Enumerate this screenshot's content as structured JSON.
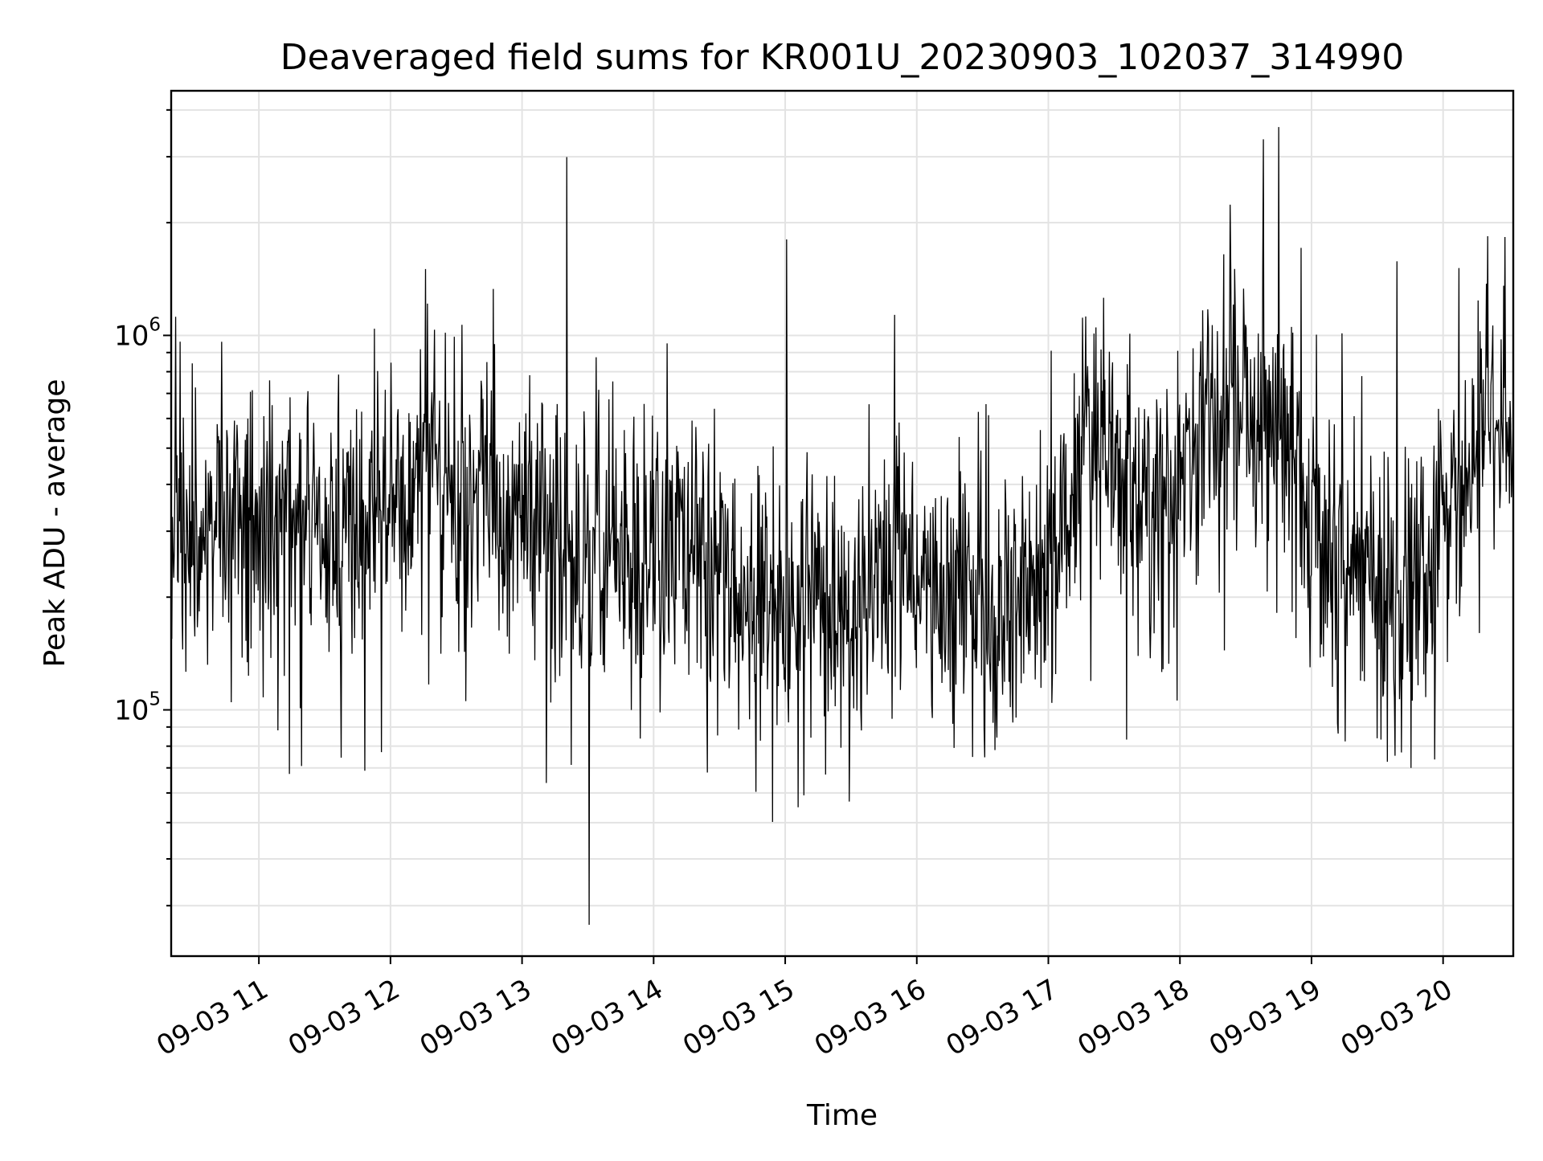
{
  "chart_data": {
    "type": "line",
    "title": "Deaveraged field sums for KR001U_20230903_102037_314990",
    "xlabel": "Time",
    "ylabel": "Peak ADU - average",
    "y_scale": "log",
    "ylim": [
      22000,
      4500000
    ],
    "xlim": [
      "09-03 10:20",
      "09-03 20:32"
    ],
    "x_tick_labels": [
      "09-03 11",
      "09-03 12",
      "09-03 13",
      "09-03 14",
      "09-03 15",
      "09-03 16",
      "09-03 17",
      "09-03 18",
      "09-03 19",
      "09-03 20"
    ],
    "y_tick_labels": [
      {
        "base": "10",
        "exp": "5",
        "value": 100000
      },
      {
        "base": "10",
        "exp": "6",
        "value": 1000000
      }
    ],
    "grid": true,
    "line_color": "#000000",
    "grid_color": "#e3e3e3",
    "series": [
      {
        "name": "",
        "sample_interval_minutes": 30,
        "x": [
          "09-03 10:20",
          "09-03 10:50",
          "09-03 11:20",
          "09-03 11:50",
          "09-03 12:20",
          "09-03 12:50",
          "09-03 13:20",
          "09-03 13:50",
          "09-03 14:20",
          "09-03 14:50",
          "09-03 15:20",
          "09-03 15:50",
          "09-03 16:20",
          "09-03 16:50",
          "09-03 17:20",
          "09-03 17:50",
          "09-03 18:20",
          "09-03 18:50",
          "09-03 19:20",
          "09-03 19:50",
          "09-03 20:20"
        ],
        "values": [
          300000,
          320000,
          330000,
          310000,
          420000,
          380000,
          260000,
          230000,
          280000,
          190000,
          180000,
          260000,
          170000,
          200000,
          500000,
          330000,
          750000,
          450000,
          220000,
          200000,
          550000
        ]
      }
    ]
  }
}
